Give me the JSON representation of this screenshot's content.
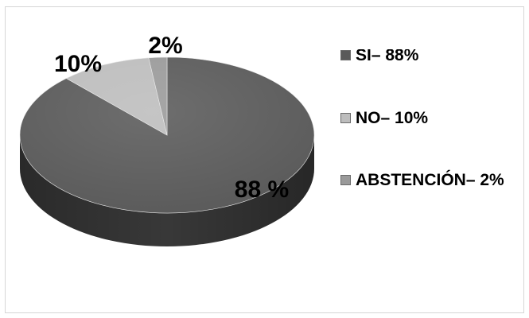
{
  "chart_data": {
    "type": "pie",
    "categories": [
      "SI",
      "NO",
      "ABSTENCIÓN"
    ],
    "values": [
      88,
      10,
      2
    ],
    "colors": [
      "#5a5a5a",
      "#bdbdbd",
      "#9a9a9a"
    ],
    "data_labels": [
      "88 %",
      "10%",
      "2%"
    ],
    "legend": [
      "SI– 88%",
      "NO– 10%",
      "ABSTENCIÓN– 2%"
    ],
    "legend_position": "right",
    "style": "3d"
  }
}
